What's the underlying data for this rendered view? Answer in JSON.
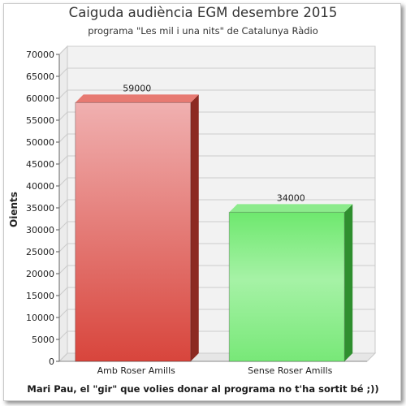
{
  "chart_data": {
    "type": "bar",
    "title": "Caiguda audiència EGM desembre 2015",
    "subtitle": "programa \"Les mil i una nits\" de Catalunya Ràdio",
    "xlabel": "",
    "ylabel": "Oients",
    "categories": [
      "Amb Roser Amills",
      "Sense Roser Amills"
    ],
    "values": [
      59000,
      34000
    ],
    "ylim": [
      0,
      70000
    ],
    "ytick_step": 5000,
    "grid": true,
    "colors": [
      "#e0504a",
      "#5ee05e"
    ]
  },
  "footer": {
    "note": "Mari Pau, el \"gir\" que volies donar al programa no t'ha sortit bé ;))"
  }
}
